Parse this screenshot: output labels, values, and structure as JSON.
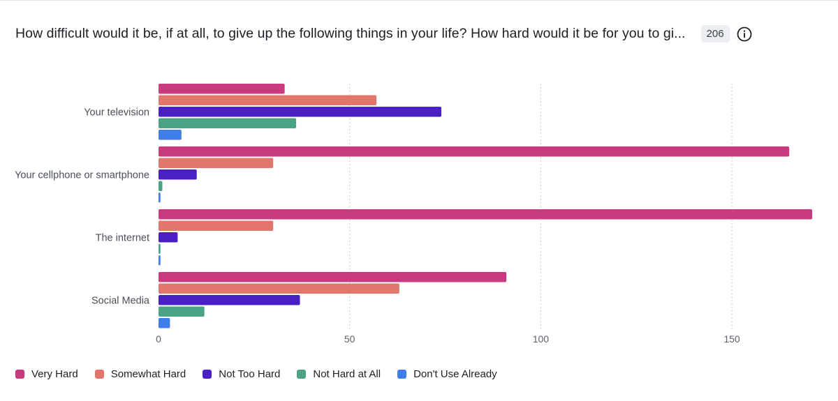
{
  "header": {
    "title": "How difficult would it be, if at all, to give up the following things in your life? How hard would it be for you to gi...",
    "response_count": "206",
    "info_icon": "info-icon"
  },
  "chart_data": {
    "type": "bar",
    "orientation": "horizontal",
    "title": "How difficult would it be, if at all, to give up the following things in your life? How hard would it be for you to gi...",
    "categories": [
      "Your television",
      "Your cellphone or smartphone",
      "The internet",
      "Social Media"
    ],
    "series": [
      {
        "name": "Very Hard",
        "color": "#c93a7e",
        "values": [
          33,
          165,
          171,
          91
        ]
      },
      {
        "name": "Somewhat Hard",
        "color": "#e0766c",
        "values": [
          57,
          30,
          30,
          63
        ]
      },
      {
        "name": "Not Too Hard",
        "color": "#4a1fc3",
        "values": [
          74,
          10,
          5,
          37
        ]
      },
      {
        "name": "Not Hard at All",
        "color": "#4aa483",
        "values": [
          36,
          1,
          0.5,
          12
        ]
      },
      {
        "name": "Don't Use Already",
        "color": "#3f7de8",
        "values": [
          6,
          0.5,
          0.5,
          3
        ]
      }
    ],
    "xlim": [
      0,
      171
    ],
    "xticks": [
      0,
      50,
      100,
      150
    ],
    "grid": true,
    "legend_position": "bottom-left",
    "xlabel": "",
    "ylabel": ""
  }
}
